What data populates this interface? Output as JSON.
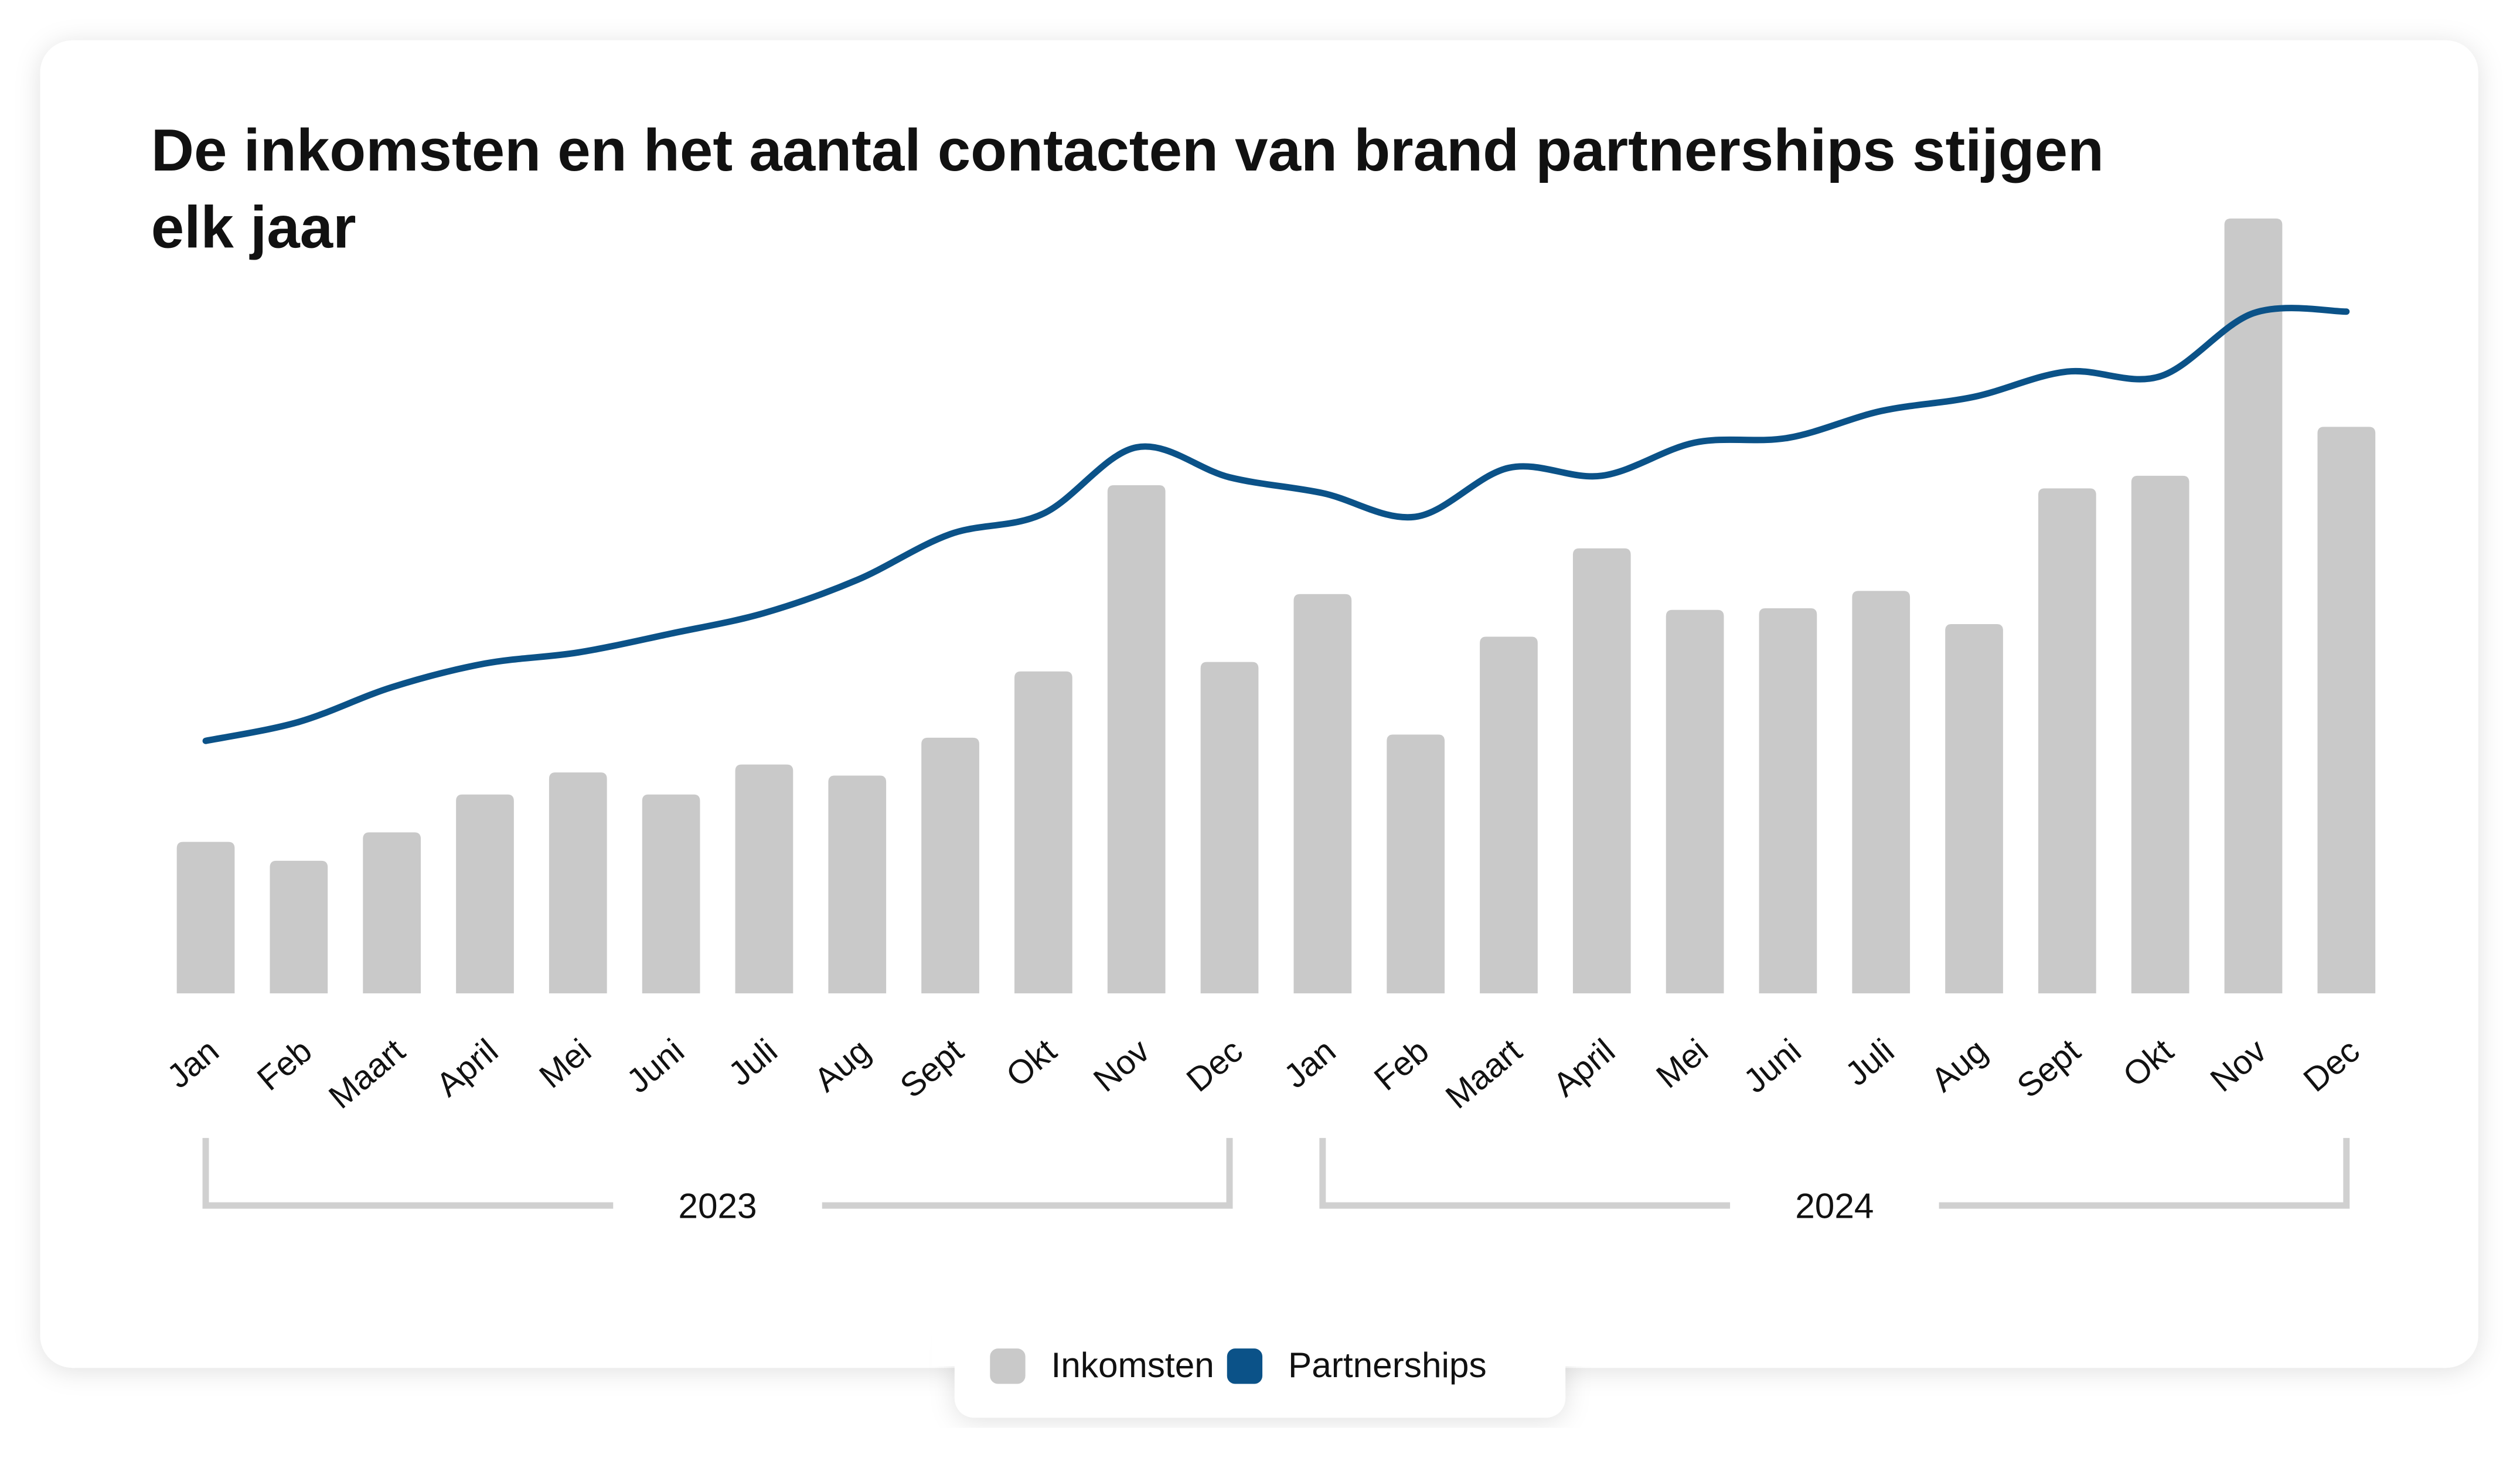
{
  "chart_data": {
    "type": "bar_line",
    "title": "De inkomsten en het aantal contacten van brand partnerships stijgen elk jaar",
    "categories": [
      "Jan",
      "Feb",
      "Maart",
      "April",
      "Mei",
      "Juni",
      "Juli",
      "Aug",
      "Sept",
      "Okt",
      "Nov",
      "Dec",
      "Jan",
      "Feb",
      "Maart",
      "April",
      "Mei",
      "Juni",
      "Juli",
      "Aug",
      "Sept",
      "Okt",
      "Nov",
      "Dec"
    ],
    "groups": [
      "2023",
      "2024"
    ],
    "series": [
      {
        "name": "Inkomsten",
        "type": "bar",
        "color": "#c9c9c9",
        "values": [
          96,
          84,
          102,
          126,
          140,
          126,
          145,
          138,
          162,
          204,
          322,
          210,
          253,
          164,
          226,
          282,
          243,
          244,
          255,
          234,
          320,
          328,
          491,
          359
        ]
      },
      {
        "name": "Partnerships",
        "type": "line",
        "color": "#0b5288",
        "values": [
          160,
          172,
          194,
          209,
          216,
          228,
          241,
          262,
          291,
          304,
          346,
          327,
          317,
          302,
          333,
          328,
          349,
          352,
          369,
          378,
          394,
          391,
          431,
          432
        ]
      }
    ],
    "ylim": [
      0,
      500
    ],
    "legend": "bottom"
  }
}
